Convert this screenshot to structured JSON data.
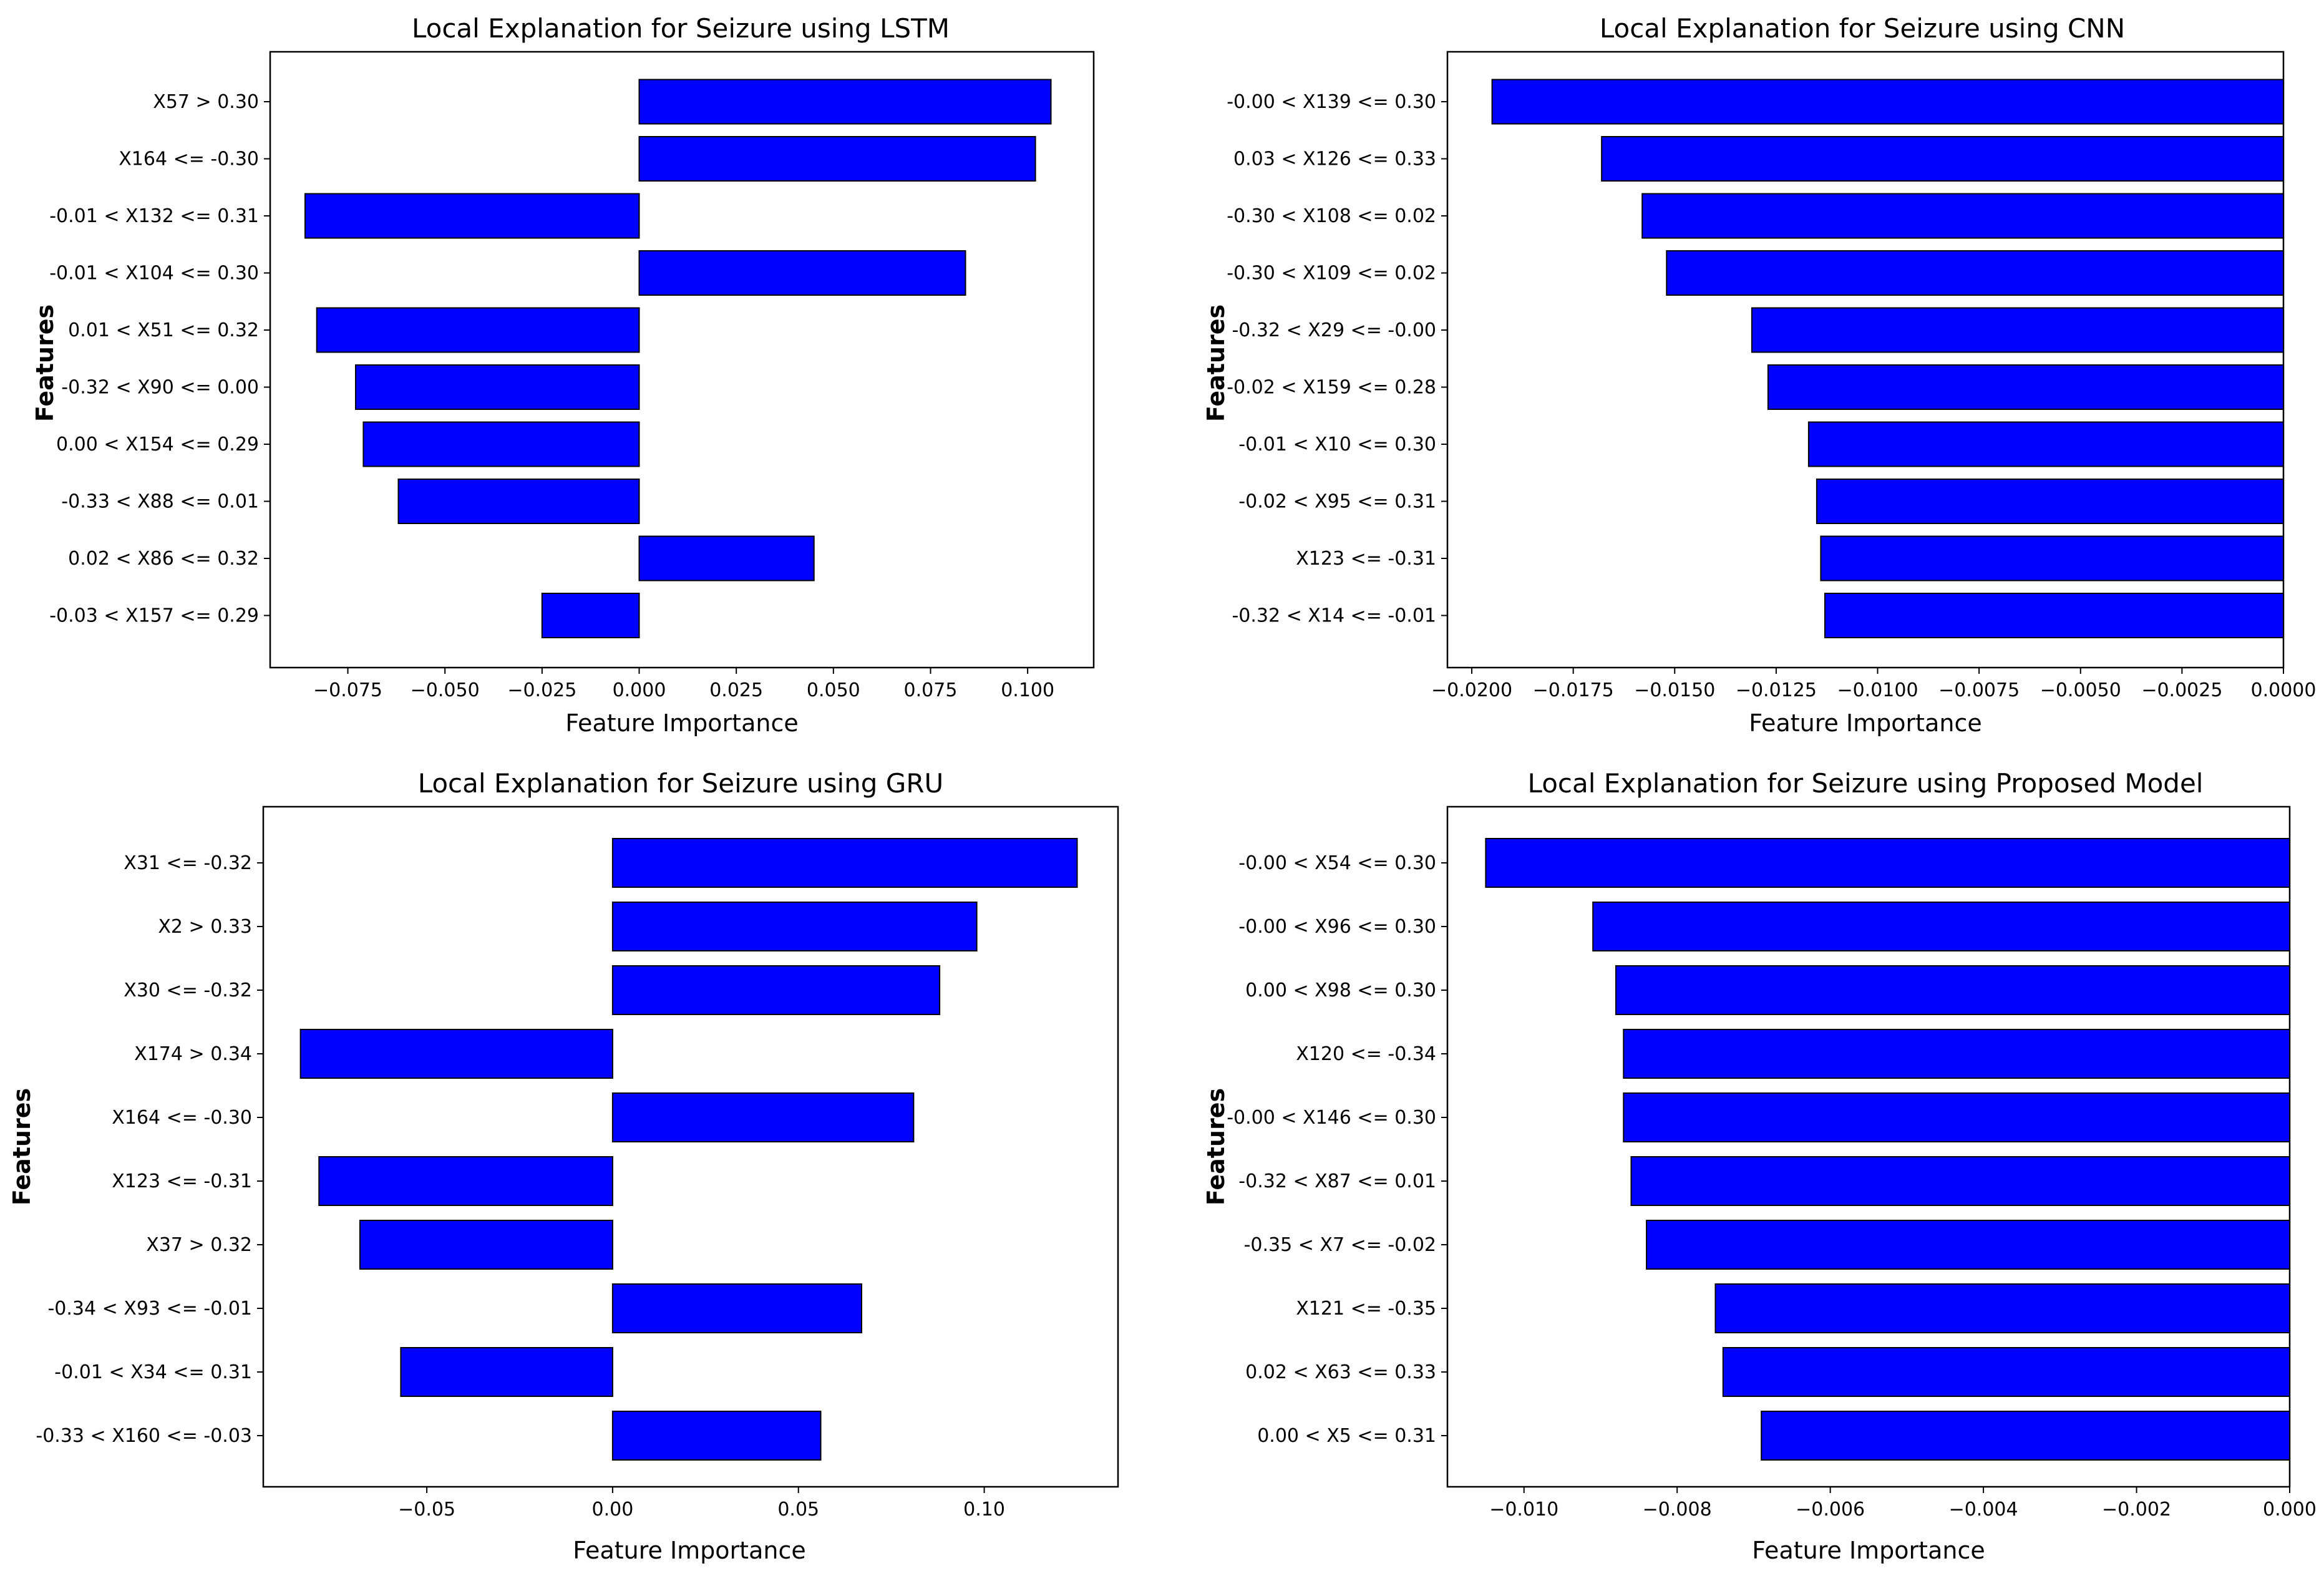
{
  "chart_data": [
    {
      "type": "bar",
      "orientation": "horizontal",
      "title": "Local Explanation for Seizure using LSTM",
      "xlabel": "Feature Importance",
      "ylabel": "Features",
      "bar_color": "#0000ff",
      "xlim": [
        -0.095,
        0.117
      ],
      "xticks": [
        -0.075,
        -0.05,
        -0.025,
        0.0,
        0.025,
        0.05,
        0.075,
        0.1
      ],
      "xtick_labels": [
        "−0.075",
        "−0.050",
        "−0.025",
        "0.000",
        "0.025",
        "0.050",
        "0.075",
        "0.100"
      ],
      "categories": [
        "X57 > 0.30",
        "X164 <= -0.30",
        "-0.01 < X132 <= 0.31",
        "-0.01 < X104 <= 0.30",
        "0.01 < X51 <= 0.32",
        "-0.32 < X90 <= 0.00",
        "0.00 < X154 <= 0.29",
        "-0.33 < X88 <= 0.01",
        "0.02 < X86 <= 0.32",
        "-0.03 < X157 <= 0.29"
      ],
      "values": [
        0.106,
        0.102,
        -0.086,
        0.084,
        -0.083,
        -0.073,
        -0.071,
        -0.062,
        0.045,
        -0.025
      ]
    },
    {
      "type": "bar",
      "orientation": "horizontal",
      "title": "Local Explanation for Seizure using CNN",
      "xlabel": "Feature Importance",
      "ylabel": "Features",
      "bar_color": "#0000ff",
      "xlim": [
        -0.0206,
        0.0
      ],
      "xticks": [
        -0.02,
        -0.0175,
        -0.015,
        -0.0125,
        -0.01,
        -0.0075,
        -0.005,
        -0.0025,
        0.0
      ],
      "xtick_labels": [
        "−0.0200",
        "−0.0175",
        "−0.0150",
        "−0.0125",
        "−0.0100",
        "−0.0075",
        "−0.0050",
        "−0.0025",
        "0.0000"
      ],
      "categories": [
        "-0.00 < X139 <= 0.30",
        "0.03 < X126 <= 0.33",
        "-0.30 < X108 <= 0.02",
        "-0.30 < X109 <= 0.02",
        "-0.32 < X29 <= -0.00",
        "-0.02 < X159 <= 0.28",
        "-0.01 < X10 <= 0.30",
        "-0.02 < X95 <= 0.31",
        "X123 <= -0.31",
        "-0.32 < X14 <= -0.01"
      ],
      "values": [
        -0.0195,
        -0.0168,
        -0.0158,
        -0.0152,
        -0.0131,
        -0.0127,
        -0.0117,
        -0.0115,
        -0.0114,
        -0.0113
      ]
    },
    {
      "type": "bar",
      "orientation": "horizontal",
      "title": "Local Explanation for Seizure using GRU",
      "xlabel": "Feature Importance",
      "ylabel": "Features",
      "bar_color": "#0000ff",
      "xlim": [
        -0.094,
        0.136
      ],
      "xticks": [
        -0.05,
        0.0,
        0.05,
        0.1
      ],
      "xtick_labels": [
        "−0.05",
        "0.00",
        "0.05",
        "0.10"
      ],
      "categories": [
        "X31 <= -0.32",
        "X2 > 0.33",
        "X30 <= -0.32",
        "X174 > 0.34",
        "X164 <= -0.30",
        "X123 <= -0.31",
        "X37 > 0.32",
        "-0.34 < X93 <= -0.01",
        "-0.01 < X34 <= 0.31",
        "-0.33 < X160 <= -0.03"
      ],
      "values": [
        0.125,
        0.098,
        0.088,
        -0.084,
        0.081,
        -0.079,
        -0.068,
        0.067,
        -0.057,
        0.056
      ]
    },
    {
      "type": "bar",
      "orientation": "horizontal",
      "title": "Local Explanation for Seizure using Proposed Model",
      "xlabel": "Feature Importance",
      "ylabel": "Features",
      "bar_color": "#0000ff",
      "xlim": [
        -0.011,
        0.0
      ],
      "xticks": [
        -0.01,
        -0.008,
        -0.006,
        -0.004,
        -0.002,
        0.0
      ],
      "xtick_labels": [
        "−0.010",
        "−0.008",
        "−0.006",
        "−0.004",
        "−0.002",
        "0.000"
      ],
      "categories": [
        "-0.00 < X54 <= 0.30",
        "-0.00 < X96 <= 0.30",
        "0.00 < X98 <= 0.30",
        "X120 <= -0.34",
        "-0.00 < X146 <= 0.30",
        "-0.32 < X87 <= 0.01",
        "-0.35 < X7 <= -0.02",
        "X121 <= -0.35",
        "0.02 < X63 <= 0.33",
        "0.00 < X5 <= 0.31"
      ],
      "values": [
        -0.0105,
        -0.0091,
        -0.0088,
        -0.0087,
        -0.0087,
        -0.0086,
        -0.0084,
        -0.0075,
        -0.0074,
        -0.0069
      ]
    }
  ]
}
